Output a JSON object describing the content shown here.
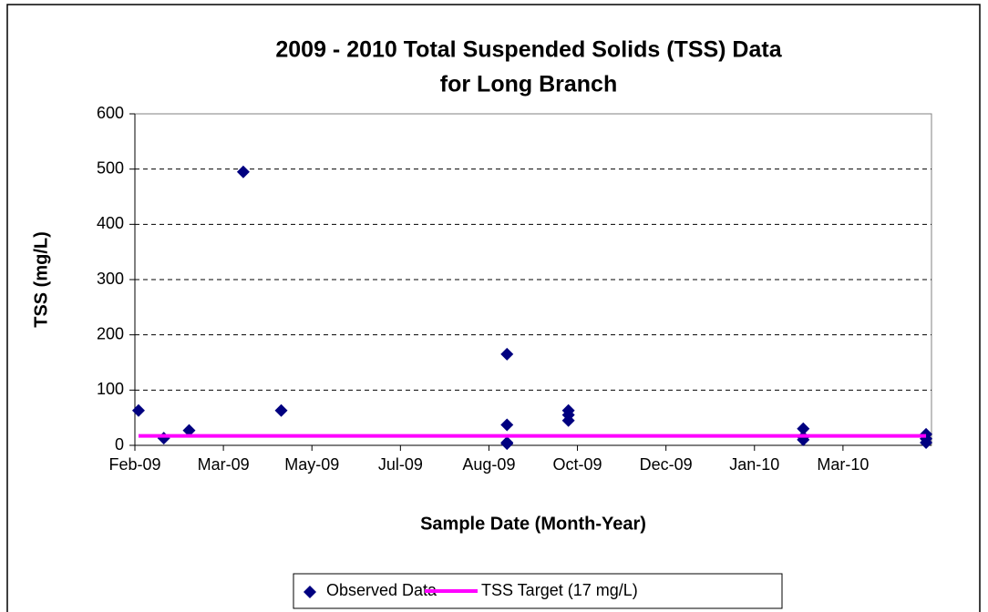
{
  "chart_data": {
    "type": "scatter",
    "title": [
      "2009 - 2010 Total Suspended Solids (TSS) Data",
      "for Long Branch"
    ],
    "x_label": "Sample Date (Month-Year)",
    "y_label": "TSS (mg/L)",
    "xlim": [
      39854,
      40295
    ],
    "xticks": [
      {
        "value": 39854,
        "label": "Feb-09"
      },
      {
        "value": 39903,
        "label": "Mar-09"
      },
      {
        "value": 39952,
        "label": "May-09"
      },
      {
        "value": 40001,
        "label": "Jul-09"
      },
      {
        "value": 40050,
        "label": "Aug-09"
      },
      {
        "value": 40099,
        "label": "Oct-09"
      },
      {
        "value": 40148,
        "label": "Dec-09"
      },
      {
        "value": 40197,
        "label": "Jan-10"
      },
      {
        "value": 40246,
        "label": "Mar-10"
      }
    ],
    "ylim": [
      0,
      600
    ],
    "yticks": [
      0,
      100,
      200,
      300,
      400,
      500,
      600
    ],
    "grid": true,
    "legend": "bottom",
    "series": [
      {
        "name": "Observed Data",
        "color": "#000080",
        "style": "marker",
        "x": [
          39856,
          39870,
          39884,
          39914,
          39935,
          40060,
          40060,
          40060,
          40060,
          40094,
          40094,
          40094,
          40224,
          40224,
          40224,
          40292,
          40292,
          40292
        ],
        "values": [
          63,
          13,
          27,
          495,
          63,
          165,
          37,
          5,
          3,
          63,
          55,
          45,
          30,
          15,
          10,
          20,
          12,
          5
        ]
      },
      {
        "name": "TSS Target (17 mg/L)",
        "color": "#ff00ff",
        "style": "line",
        "x": [
          39856,
          40292
        ],
        "values": [
          17,
          17
        ]
      }
    ]
  }
}
